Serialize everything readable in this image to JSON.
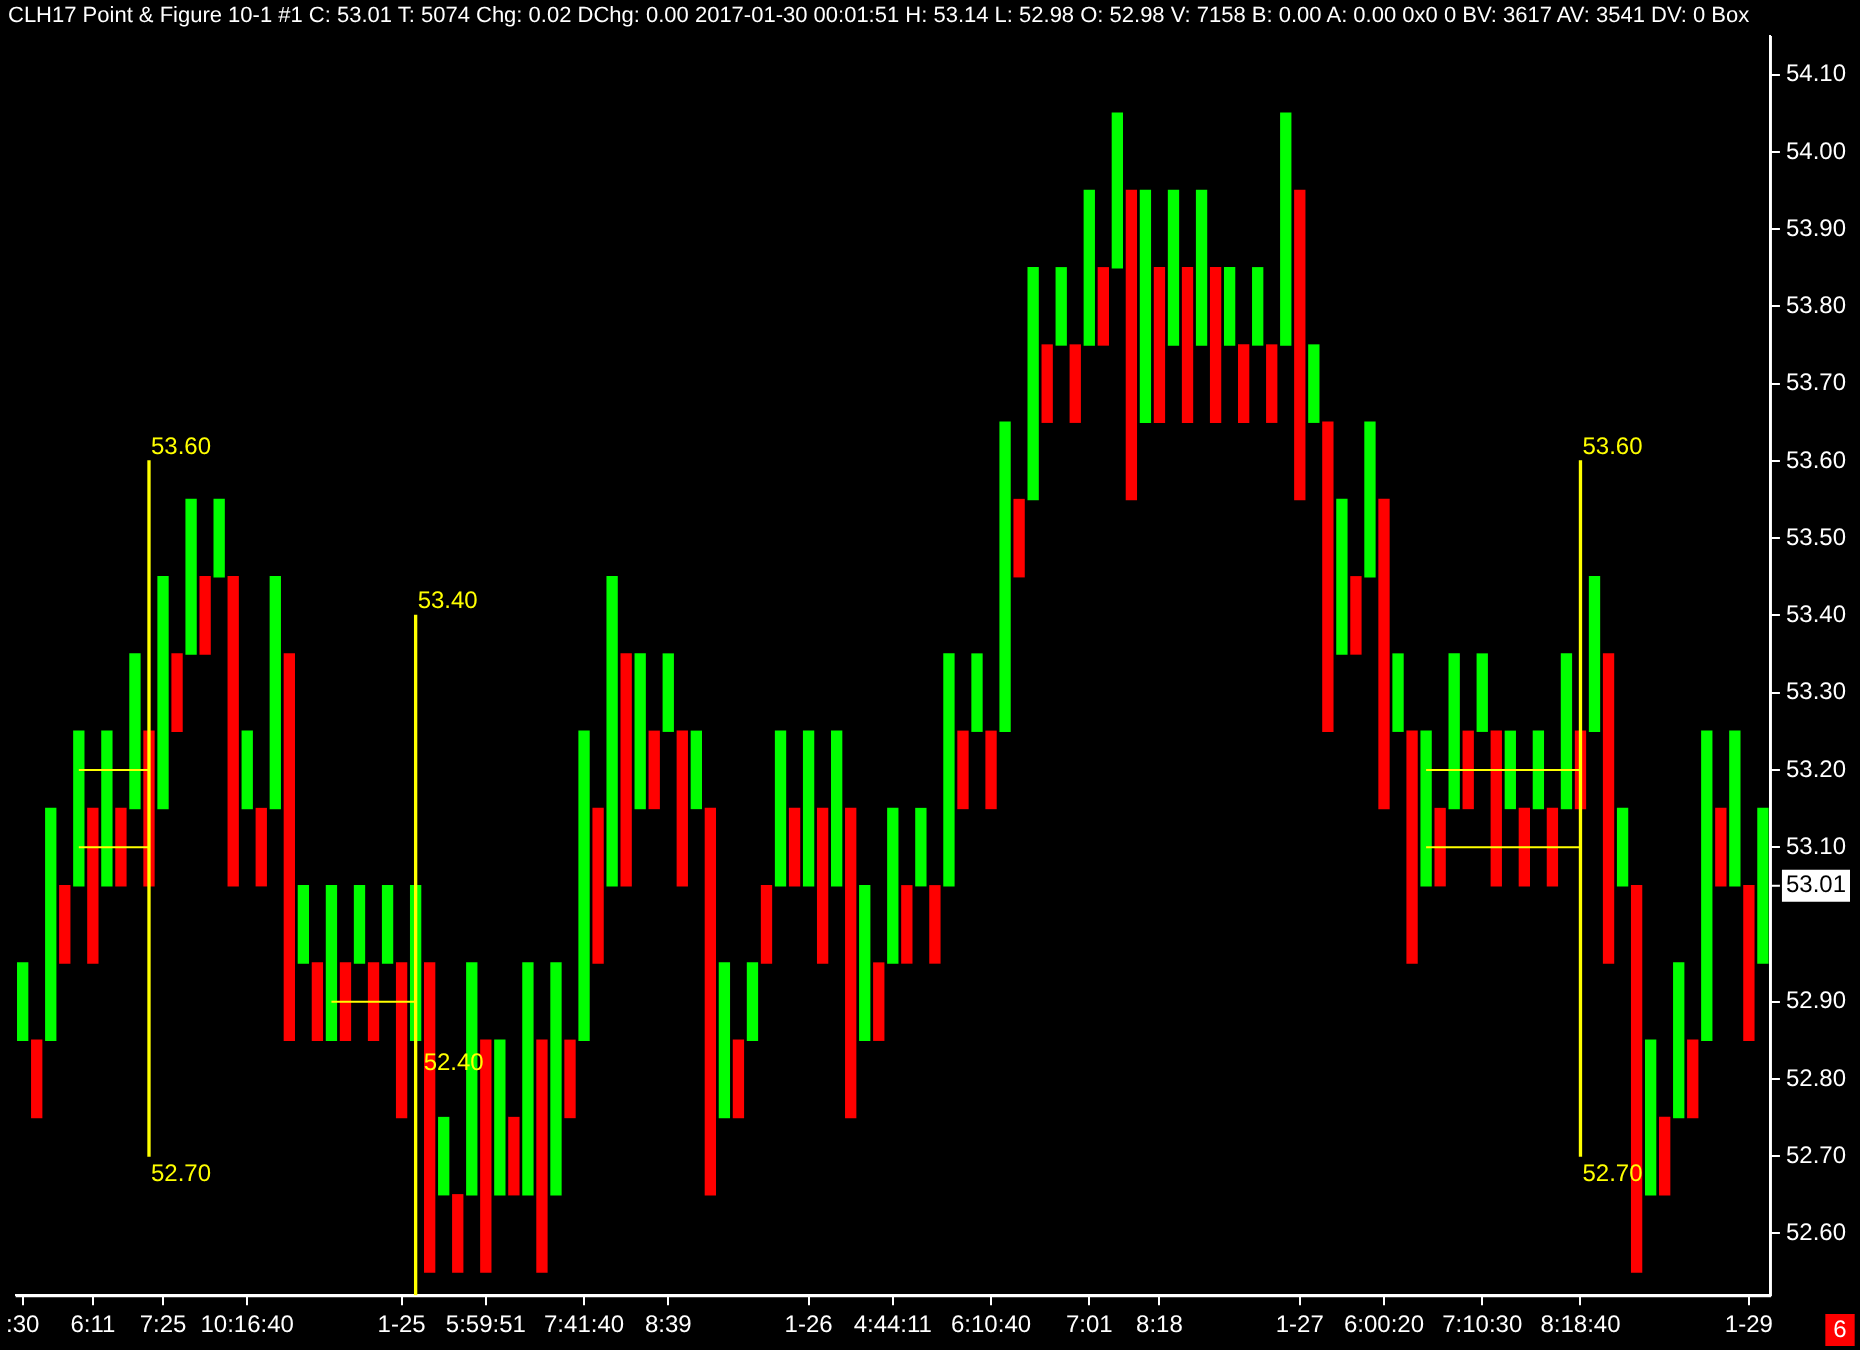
{
  "chart_data": {
    "type": "bar",
    "title": "CLH17  Point & Figure 10-1  #1  C: 53.01  T: 5074  Chg: 0.02  DChg: 0.00  2017-01-30 00:01:51  H: 53.14  L: 52.98  O: 52.98  V: 7158  B: 0.00  A: 0.00  0x0 0  BV: 3617  AV: 3541  DV: 0  Box",
    "categories": [
      ":30",
      null,
      null,
      null,
      null,
      "6:11",
      null,
      null,
      null,
      null,
      "7:25",
      null,
      null,
      null,
      null,
      null,
      "10:16:40",
      null,
      null,
      null,
      null,
      null,
      null,
      null,
      null,
      null,
      null,
      "1-25",
      null,
      null,
      null,
      null,
      null,
      "5:59:51",
      null,
      null,
      null,
      null,
      null,
      null,
      "7:41:40",
      null,
      null,
      null,
      null,
      null,
      "8:39",
      null,
      null,
      null,
      null,
      null,
      null,
      null,
      null,
      null,
      "1-26",
      null,
      null,
      null,
      null,
      null,
      "4:44:11",
      null,
      null,
      null,
      null,
      null,
      null,
      "6:10:40",
      null,
      null,
      null,
      null,
      null,
      null,
      "7:01",
      null,
      null,
      null,
      null,
      "8:18",
      null,
      null,
      null,
      null,
      null,
      null,
      null,
      null,
      null,
      "1-27",
      null,
      null,
      null,
      null,
      null,
      "6:00:20",
      null,
      null,
      null,
      null,
      null,
      null,
      "7:10:30",
      null,
      null,
      null,
      null,
      null,
      null,
      "8:18:40",
      null,
      null,
      null,
      null,
      null,
      null,
      null,
      null,
      null,
      null,
      null,
      "1-29",
      null
    ],
    "base": [
      52.85,
      52.75,
      52.85,
      52.95,
      53.05,
      52.95,
      53.05,
      53.05,
      53.15,
      53.05,
      53.15,
      53.25,
      53.35,
      53.35,
      53.45,
      53.05,
      53.15,
      53.05,
      53.15,
      52.85,
      52.95,
      52.85,
      52.85,
      52.85,
      52.95,
      52.85,
      52.95,
      52.75,
      52.85,
      52.55,
      52.65,
      52.55,
      52.65,
      52.55,
      52.65,
      52.65,
      52.65,
      52.55,
      52.65,
      52.75,
      52.85,
      52.95,
      53.05,
      53.05,
      53.15,
      53.15,
      53.25,
      53.05,
      53.15,
      52.65,
      52.75,
      52.75,
      52.85,
      52.95,
      53.05,
      53.05,
      53.05,
      52.95,
      53.05,
      52.75,
      52.85,
      52.85,
      52.95,
      52.95,
      53.05,
      52.95,
      53.05,
      53.15,
      53.25,
      53.15,
      53.25,
      53.45,
      53.55,
      53.65,
      53.75,
      53.65,
      53.75,
      53.75,
      53.85,
      53.55,
      53.65,
      53.65,
      53.75,
      53.65,
      53.75,
      53.65,
      53.75,
      53.65,
      53.75,
      53.65,
      53.75,
      53.55,
      53.65,
      53.25,
      53.35,
      53.35,
      53.45,
      53.15,
      53.25,
      52.95,
      53.05,
      53.05,
      53.15,
      53.15,
      53.25,
      53.05,
      53.15,
      53.05,
      53.15,
      53.05,
      53.15,
      53.15,
      53.25,
      52.95,
      53.05,
      52.55,
      52.65,
      52.65,
      52.75,
      52.75,
      52.85,
      53.05,
      53.05,
      52.85,
      52.95
    ],
    "values": [
      0.1,
      0.1,
      0.3,
      0.1,
      0.2,
      0.2,
      0.2,
      0.1,
      0.2,
      0.2,
      0.3,
      0.1,
      0.2,
      0.1,
      0.1,
      0.4,
      0.1,
      0.1,
      0.3,
      0.5,
      0.1,
      0.1,
      0.2,
      0.1,
      0.1,
      0.1,
      0.1,
      0.2,
      0.2,
      0.4,
      0.1,
      0.1,
      0.3,
      0.3,
      0.2,
      0.1,
      0.3,
      0.3,
      0.3,
      0.1,
      0.4,
      0.2,
      0.4,
      0.3,
      0.2,
      0.1,
      0.1,
      0.2,
      0.1,
      0.5,
      0.2,
      0.1,
      0.1,
      0.1,
      0.2,
      0.1,
      0.2,
      0.2,
      0.2,
      0.4,
      0.2,
      0.1,
      0.2,
      0.1,
      0.1,
      0.1,
      0.3,
      0.1,
      0.1,
      0.1,
      0.4,
      0.1,
      0.3,
      0.1,
      0.1,
      0.1,
      0.2,
      0.1,
      0.2,
      0.4,
      0.3,
      0.2,
      0.2,
      0.2,
      0.2,
      0.2,
      0.1,
      0.1,
      0.1,
      0.1,
      0.3,
      0.4,
      0.1,
      0.4,
      0.2,
      0.1,
      0.2,
      0.4,
      0.1,
      0.3,
      0.2,
      0.1,
      0.2,
      0.1,
      0.1,
      0.2,
      0.1,
      0.1,
      0.1,
      0.1,
      0.2,
      0.1,
      0.2,
      0.4,
      0.1,
      0.5,
      0.2,
      0.1,
      0.2,
      0.1,
      0.4,
      0.1,
      0.2,
      0.2,
      0.2
    ],
    "colors": [
      "#00ff00",
      "#ff0000",
      "#00ff00",
      "#ff0000",
      "#00ff00",
      "#ff0000",
      "#00ff00",
      "#ff0000",
      "#00ff00",
      "#ff0000",
      "#00ff00",
      "#ff0000",
      "#00ff00",
      "#ff0000",
      "#00ff00",
      "#ff0000",
      "#00ff00",
      "#ff0000",
      "#00ff00",
      "#ff0000",
      "#00ff00",
      "#ff0000",
      "#00ff00",
      "#ff0000",
      "#00ff00",
      "#ff0000",
      "#00ff00",
      "#ff0000",
      "#00ff00",
      "#ff0000",
      "#00ff00",
      "#ff0000",
      "#00ff00",
      "#ff0000",
      "#00ff00",
      "#ff0000",
      "#00ff00",
      "#ff0000",
      "#00ff00",
      "#ff0000",
      "#00ff00",
      "#ff0000",
      "#00ff00",
      "#ff0000",
      "#00ff00",
      "#ff0000",
      "#00ff00",
      "#ff0000",
      "#00ff00",
      "#ff0000",
      "#00ff00",
      "#ff0000",
      "#00ff00",
      "#ff0000",
      "#00ff00",
      "#ff0000",
      "#00ff00",
      "#ff0000",
      "#00ff00",
      "#ff0000",
      "#00ff00",
      "#ff0000",
      "#00ff00",
      "#ff0000",
      "#00ff00",
      "#ff0000",
      "#00ff00",
      "#ff0000",
      "#00ff00",
      "#ff0000",
      "#00ff00",
      "#ff0000",
      "#00ff00",
      "#ff0000",
      "#00ff00",
      "#ff0000",
      "#00ff00",
      "#ff0000",
      "#00ff00",
      "#ff0000",
      "#00ff00",
      "#ff0000",
      "#00ff00",
      "#ff0000",
      "#00ff00",
      "#ff0000",
      "#00ff00",
      "#ff0000",
      "#00ff00",
      "#ff0000",
      "#00ff00",
      "#ff0000",
      "#00ff00",
      "#ff0000",
      "#00ff00",
      "#ff0000",
      "#00ff00",
      "#ff0000",
      "#00ff00",
      "#ff0000",
      "#00ff00",
      "#ff0000",
      "#00ff00",
      "#ff0000",
      "#00ff00",
      "#ff0000",
      "#00ff00",
      "#ff0000",
      "#00ff00",
      "#ff0000",
      "#00ff00",
      "#ff0000",
      "#00ff00",
      "#ff0000",
      "#00ff00",
      "#ff0000",
      "#00ff00",
      "#ff0000",
      "#00ff00",
      "#ff0000",
      "#00ff00",
      "#ff0000",
      "#00ff00",
      "#ff0000",
      "#00ff00"
    ],
    "series": [
      {
        "type": "bar",
        "color": "#ffff00",
        "base": [
          null,
          null,
          null,
          null,
          null,
          null,
          null,
          null,
          null,
          52.7,
          null,
          null,
          null,
          null,
          null,
          null,
          null,
          null,
          null,
          null,
          null,
          null,
          null,
          null,
          null,
          null,
          null,
          null,
          null,
          null,
          null,
          null,
          null,
          null,
          null,
          null,
          null,
          null,
          null,
          null,
          null,
          null,
          null,
          null,
          null,
          null,
          null,
          null,
          null,
          null,
          null,
          null,
          null,
          null,
          null,
          null,
          null,
          null,
          null,
          null,
          null,
          null,
          null,
          null,
          null,
          null,
          null,
          null,
          null,
          null,
          null,
          null,
          null,
          null,
          null,
          null,
          null,
          null,
          null,
          null,
          null,
          null,
          null,
          null,
          null,
          null,
          null,
          null,
          null,
          null,
          null,
          null,
          null,
          null,
          null,
          null,
          null,
          null,
          null,
          null,
          null,
          null,
          null,
          null,
          null,
          null,
          null,
          null,
          null,
          null,
          null,
          null,
          null,
          null,
          null,
          null,
          null,
          null,
          null,
          null,
          null,
          null,
          null,
          null,
          null
        ],
        "values": [
          null,
          null,
          null,
          null,
          null,
          null,
          null,
          null,
          null,
          0.9,
          null,
          null,
          null,
          null,
          null,
          null,
          null,
          null,
          null,
          null,
          null,
          null,
          null,
          null,
          null,
          null,
          null,
          null,
          null,
          null,
          null,
          null,
          null,
          null,
          null,
          null,
          null,
          null,
          null,
          null,
          null,
          null,
          null,
          null,
          null,
          null,
          null,
          null,
          null,
          null,
          null,
          null,
          null,
          null,
          null,
          null,
          null,
          null,
          null,
          null,
          null,
          null,
          null,
          null,
          null,
          null,
          null,
          null,
          null,
          null,
          null,
          null,
          null,
          null,
          null,
          null,
          null,
          null,
          null,
          null,
          null,
          null,
          null,
          null,
          null,
          null,
          null,
          null,
          null,
          null,
          null,
          null,
          null,
          null,
          null,
          null,
          null,
          null,
          null,
          null,
          null,
          null,
          null,
          null,
          null,
          null,
          null,
          null,
          null,
          null,
          null,
          null,
          null,
          null,
          null,
          null,
          null,
          null,
          null,
          null,
          null,
          null,
          null,
          null,
          null
        ]
      },
      {
        "type": "bar",
        "color": "#ffff00",
        "base": [
          null,
          null,
          null,
          null,
          null,
          null,
          null,
          null,
          null,
          null,
          null,
          null,
          null,
          null,
          null,
          null,
          null,
          null,
          null,
          null,
          null,
          null,
          null,
          null,
          null,
          null,
          null,
          null,
          52.52,
          null,
          null,
          null,
          null,
          null,
          null,
          null,
          null,
          null,
          null,
          null,
          null,
          null,
          null,
          null,
          null,
          null,
          null,
          null,
          null,
          null,
          null,
          null,
          null,
          null,
          null,
          null,
          null,
          null,
          null,
          null,
          null,
          null,
          null,
          null,
          null,
          null,
          null,
          null,
          null,
          null,
          null,
          null,
          null,
          null,
          null,
          null,
          null,
          null,
          null,
          null,
          null,
          null,
          null,
          null,
          null,
          null,
          null,
          null,
          null,
          null,
          null,
          null,
          null,
          null,
          null,
          null,
          null,
          null,
          null,
          null,
          null,
          null,
          null,
          null,
          null,
          null,
          null,
          null,
          null,
          null,
          null,
          null,
          null,
          null,
          null,
          null,
          null,
          null,
          null,
          null,
          null,
          null,
          null,
          null,
          null
        ],
        "values": [
          null,
          null,
          null,
          null,
          null,
          null,
          null,
          null,
          null,
          null,
          null,
          null,
          null,
          null,
          null,
          null,
          null,
          null,
          null,
          null,
          null,
          null,
          null,
          null,
          null,
          null,
          null,
          null,
          0.88,
          null,
          null,
          null,
          null,
          null,
          null,
          null,
          null,
          null,
          null,
          null,
          null,
          null,
          null,
          null,
          null,
          null,
          null,
          null,
          null,
          null,
          null,
          null,
          null,
          null,
          null,
          null,
          null,
          null,
          null,
          null,
          null,
          null,
          null,
          null,
          null,
          null,
          null,
          null,
          null,
          null,
          null,
          null,
          null,
          null,
          null,
          null,
          null,
          null,
          null,
          null,
          null,
          null,
          null,
          null,
          null,
          null,
          null,
          null,
          null,
          null,
          null,
          null,
          null,
          null,
          null,
          null,
          null,
          null,
          null,
          null,
          null,
          null,
          null,
          null,
          null,
          null,
          null,
          null,
          null,
          null,
          null,
          null,
          null,
          null,
          null,
          null,
          null,
          null,
          null,
          null,
          null,
          null,
          null,
          null,
          null
        ]
      },
      {
        "type": "bar",
        "color": "#ffff00",
        "base": [
          null,
          null,
          null,
          null,
          null,
          null,
          null,
          null,
          null,
          null,
          null,
          null,
          null,
          null,
          null,
          null,
          null,
          null,
          null,
          null,
          null,
          null,
          null,
          null,
          null,
          null,
          null,
          null,
          null,
          null,
          null,
          null,
          null,
          null,
          null,
          null,
          null,
          null,
          null,
          null,
          null,
          null,
          null,
          null,
          null,
          null,
          null,
          null,
          null,
          null,
          null,
          null,
          null,
          null,
          null,
          null,
          null,
          null,
          null,
          null,
          null,
          null,
          null,
          null,
          null,
          null,
          null,
          null,
          null,
          null,
          null,
          null,
          null,
          null,
          null,
          null,
          null,
          null,
          null,
          null,
          null,
          null,
          null,
          null,
          null,
          null,
          null,
          null,
          null,
          null,
          null,
          null,
          null,
          null,
          null,
          null,
          null,
          null,
          null,
          null,
          null,
          null,
          null,
          null,
          null,
          null,
          null,
          null,
          null,
          null,
          null,
          52.7,
          null,
          null,
          null,
          null,
          null,
          null,
          null,
          null,
          null,
          null,
          null,
          null,
          null
        ],
        "values": [
          null,
          null,
          null,
          null,
          null,
          null,
          null,
          null,
          null,
          null,
          null,
          null,
          null,
          null,
          null,
          null,
          null,
          null,
          null,
          null,
          null,
          null,
          null,
          null,
          null,
          null,
          null,
          null,
          null,
          null,
          null,
          null,
          null,
          null,
          null,
          null,
          null,
          null,
          null,
          null,
          null,
          null,
          null,
          null,
          null,
          null,
          null,
          null,
          null,
          null,
          null,
          null,
          null,
          null,
          null,
          null,
          null,
          null,
          null,
          null,
          null,
          null,
          null,
          null,
          null,
          null,
          null,
          null,
          null,
          null,
          null,
          null,
          null,
          null,
          null,
          null,
          null,
          null,
          null,
          null,
          null,
          null,
          null,
          null,
          null,
          null,
          null,
          null,
          null,
          null,
          null,
          null,
          null,
          null,
          null,
          null,
          null,
          null,
          null,
          null,
          null,
          null,
          null,
          null,
          null,
          null,
          null,
          null,
          null,
          null,
          null,
          0.9,
          null,
          null,
          null,
          null,
          null,
          null,
          null,
          null,
          null,
          null,
          null,
          null,
          null
        ]
      },
      {
        "type": "line",
        "color": "#ffff00",
        "values": [
          null,
          null,
          null,
          null,
          53.2,
          53.2,
          53.2,
          53.2,
          53.2,
          53.2,
          null,
          null,
          null,
          null,
          null,
          null,
          null,
          null,
          null,
          null,
          null,
          null,
          null,
          null,
          null,
          null,
          null,
          null,
          null,
          null,
          null,
          null,
          null,
          null,
          null,
          null,
          null,
          null,
          null,
          null,
          null,
          null,
          null,
          null,
          null,
          null,
          null,
          null,
          null,
          null,
          null,
          null,
          null,
          null,
          null,
          null,
          null,
          null,
          null,
          null,
          null,
          null,
          null,
          null,
          null,
          null,
          null,
          null,
          null,
          null,
          null,
          null,
          null,
          null,
          null,
          null,
          null,
          null,
          null,
          null,
          null,
          null,
          null,
          null,
          null,
          null,
          null,
          null,
          null,
          null,
          null,
          null,
          null,
          null,
          null,
          null,
          null,
          null,
          null,
          null,
          null,
          null,
          null,
          null,
          null,
          null,
          null,
          null,
          null,
          null,
          null,
          null,
          null,
          null,
          null,
          null,
          null,
          null,
          null,
          null,
          null,
          null,
          null,
          null,
          null
        ]
      },
      {
        "type": "line",
        "color": "#ffff00",
        "values": [
          null,
          null,
          null,
          null,
          53.1,
          53.1,
          53.1,
          53.1,
          53.1,
          53.1,
          null,
          null,
          null,
          null,
          null,
          null,
          null,
          null,
          null,
          null,
          null,
          null,
          null,
          null,
          null,
          null,
          null,
          null,
          null,
          null,
          null,
          null,
          null,
          null,
          null,
          null,
          null,
          null,
          null,
          null,
          null,
          null,
          null,
          null,
          null,
          null,
          null,
          null,
          null,
          null,
          null,
          null,
          null,
          null,
          null,
          null,
          null,
          null,
          null,
          null,
          null,
          null,
          null,
          null,
          null,
          null,
          null,
          null,
          null,
          null,
          null,
          null,
          null,
          null,
          null,
          null,
          null,
          null,
          null,
          null,
          null,
          null,
          null,
          null,
          null,
          null,
          null,
          null,
          null,
          null,
          null,
          null,
          null,
          null,
          null,
          null,
          null,
          null,
          null,
          null,
          null,
          null,
          null,
          null,
          null,
          null,
          null,
          null,
          null,
          null,
          null,
          null,
          null,
          null,
          null,
          null,
          null,
          null,
          null,
          null,
          null,
          null,
          null,
          null,
          null
        ]
      },
      {
        "type": "line",
        "color": "#ffff00",
        "values": [
          null,
          null,
          null,
          null,
          null,
          null,
          null,
          null,
          null,
          null,
          null,
          null,
          null,
          null,
          null,
          null,
          null,
          null,
          null,
          null,
          null,
          null,
          52.9,
          52.9,
          52.9,
          52.9,
          52.9,
          52.9,
          52.9,
          null,
          null,
          null,
          null,
          null,
          null,
          null,
          null,
          null,
          null,
          null,
          null,
          null,
          null,
          null,
          null,
          null,
          null,
          null,
          null,
          null,
          null,
          null,
          null,
          null,
          null,
          null,
          null,
          null,
          null,
          null,
          null,
          null,
          null,
          null,
          null,
          null,
          null,
          null,
          null,
          null,
          null,
          null,
          null,
          null,
          null,
          null,
          null,
          null,
          null,
          null,
          null,
          null,
          null,
          null,
          null,
          null,
          null,
          null,
          null,
          null,
          null,
          null,
          null,
          null,
          null,
          null,
          null,
          null,
          null,
          null,
          null,
          null,
          null,
          null,
          null,
          null,
          null,
          null,
          null,
          null,
          null,
          null,
          null,
          null,
          null,
          null,
          null,
          null,
          null,
          null,
          null,
          null,
          null,
          null,
          null
        ]
      },
      {
        "type": "line",
        "color": "#ffff00",
        "values": [
          null,
          null,
          null,
          null,
          null,
          null,
          null,
          null,
          null,
          null,
          null,
          null,
          null,
          null,
          null,
          null,
          null,
          null,
          null,
          null,
          null,
          null,
          null,
          null,
          null,
          null,
          null,
          null,
          null,
          null,
          null,
          null,
          null,
          null,
          null,
          null,
          null,
          null,
          null,
          null,
          null,
          null,
          null,
          null,
          null,
          null,
          null,
          null,
          null,
          null,
          null,
          null,
          null,
          null,
          null,
          null,
          null,
          null,
          null,
          null,
          null,
          null,
          null,
          null,
          null,
          null,
          null,
          null,
          null,
          null,
          null,
          null,
          null,
          null,
          null,
          null,
          null,
          null,
          null,
          null,
          null,
          null,
          null,
          null,
          null,
          null,
          null,
          null,
          null,
          null,
          null,
          null,
          null,
          null,
          null,
          null,
          null,
          null,
          null,
          null,
          53.2,
          53.2,
          53.2,
          53.2,
          53.2,
          53.2,
          53.2,
          53.2,
          53.2,
          53.2,
          53.2,
          53.2,
          null,
          null,
          null,
          null,
          null,
          null,
          null,
          null,
          null,
          null,
          null,
          null,
          null
        ]
      },
      {
        "type": "line",
        "color": "#ffff00",
        "values": [
          null,
          null,
          null,
          null,
          null,
          null,
          null,
          null,
          null,
          null,
          null,
          null,
          null,
          null,
          null,
          null,
          null,
          null,
          null,
          null,
          null,
          null,
          null,
          null,
          null,
          null,
          null,
          null,
          null,
          null,
          null,
          null,
          null,
          null,
          null,
          null,
          null,
          null,
          null,
          null,
          null,
          null,
          null,
          null,
          null,
          null,
          null,
          null,
          null,
          null,
          null,
          null,
          null,
          null,
          null,
          null,
          null,
          null,
          null,
          null,
          null,
          null,
          null,
          null,
          null,
          null,
          null,
          null,
          null,
          null,
          null,
          null,
          null,
          null,
          null,
          null,
          null,
          null,
          null,
          null,
          null,
          null,
          null,
          null,
          null,
          null,
          null,
          null,
          null,
          null,
          null,
          null,
          null,
          null,
          null,
          null,
          null,
          null,
          null,
          null,
          53.1,
          53.1,
          53.1,
          53.1,
          53.1,
          53.1,
          53.1,
          53.1,
          53.1,
          53.1,
          53.1,
          53.1,
          null,
          null,
          null,
          null,
          null,
          null,
          null,
          null,
          null,
          null,
          null,
          null,
          null
        ]
      }
    ],
    "annotations": [
      "53.60",
      "52.70",
      "53.40",
      "52.40",
      "53.60",
      "52.70",
      "53.01",
      "6"
    ],
    "ylim": [
      52.52,
      54.15
    ],
    "yticks": [
      {
        "value": 52.6,
        "label": "52.60"
      },
      {
        "value": 52.7,
        "label": "52.70"
      },
      {
        "value": 52.8,
        "label": "52.80"
      },
      {
        "value": 52.9,
        "label": "52.90"
      },
      {
        "value": 53.1,
        "label": "53.10"
      },
      {
        "value": 53.2,
        "label": "53.20"
      },
      {
        "value": 53.3,
        "label": "53.30"
      },
      {
        "value": 53.4,
        "label": "53.40"
      },
      {
        "value": 53.5,
        "label": "53.50"
      },
      {
        "value": 53.6,
        "label": "53.60"
      },
      {
        "value": 53.7,
        "label": "53.70"
      },
      {
        "value": 53.8,
        "label": "53.80"
      },
      {
        "value": 53.9,
        "label": "53.90"
      },
      {
        "value": 54.0,
        "label": "54.00"
      },
      {
        "value": 54.1,
        "label": "54.10"
      }
    ],
    "grid": false,
    "legend": false
  }
}
